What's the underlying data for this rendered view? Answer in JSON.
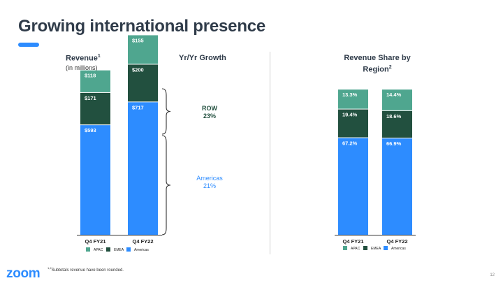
{
  "slide": {
    "title": "Growing international presence",
    "footnote_marks": "1,2",
    "footnote": "Subtotals revenue have been rounded.",
    "page_number": "12",
    "logo_text": "zoom"
  },
  "left": {
    "revenue_label": "Revenue",
    "revenue_sup": "1",
    "revenue_sub": "(in millions)",
    "growth_header": "Yr/Yr Growth",
    "row_growth": {
      "label": "ROW",
      "value": "23%"
    },
    "americas_growth": {
      "label": "Americas",
      "value": "21%"
    }
  },
  "right": {
    "title_line1": "Revenue Share by",
    "title_line2": "Region",
    "title_sup": "2"
  },
  "colors": {
    "apac": "#4fa68f",
    "emea": "#22503f",
    "americas": "#2d8cff",
    "axis": "#333333",
    "row_text": "#22503f",
    "americas_text": "#2d8cff"
  },
  "chart_data": [
    {
      "type": "bar",
      "stacked": true,
      "categories": [
        "Q4 FY21",
        "Q4 FY22"
      ],
      "series": [
        {
          "name": "Americas",
          "values": [
            593,
            717
          ],
          "labels": [
            "$593",
            "$717"
          ]
        },
        {
          "name": "EMEA",
          "values": [
            171,
            200
          ],
          "labels": [
            "$171",
            "$200"
          ]
        },
        {
          "name": "APAC",
          "values": [
            118,
            155
          ],
          "labels": [
            "$118",
            "$155"
          ]
        }
      ],
      "legend": [
        "APAC",
        "EMEA",
        "Americas"
      ],
      "legend_position": "bottom"
    },
    {
      "type": "bar",
      "stacked": true,
      "categories": [
        "Q4 FY21",
        "Q4 FY22"
      ],
      "series": [
        {
          "name": "Americas",
          "values": [
            67.2,
            66.9
          ],
          "labels": [
            "67.2%",
            "66.9%"
          ]
        },
        {
          "name": "EMEA",
          "values": [
            19.4,
            18.6
          ],
          "labels": [
            "19.4%",
            "18.6%"
          ]
        },
        {
          "name": "APAC",
          "values": [
            13.3,
            14.4
          ],
          "labels": [
            "13.3%",
            "14.4%"
          ]
        }
      ],
      "legend": [
        "APAC",
        "EMEA",
        "Americas"
      ],
      "legend_position": "bottom"
    }
  ]
}
